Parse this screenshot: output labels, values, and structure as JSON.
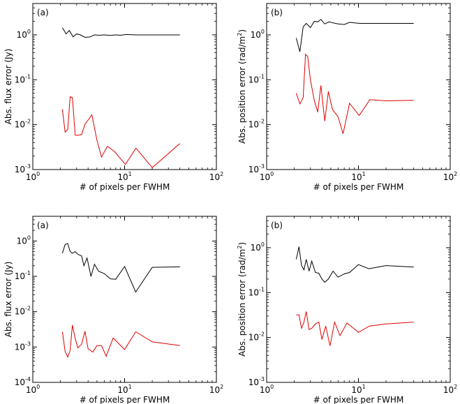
{
  "chart_data": [
    {
      "type": "line",
      "panel_label": "(a)",
      "xlabel": "# of pixels per FWHM",
      "ylabel": "Abs. flux error (Jy)",
      "xscale": "log",
      "yscale": "log",
      "xlim": [
        1,
        100
      ],
      "ylim": [
        0.001,
        5
      ],
      "x_ticks": [
        {
          "v": 1,
          "b": "10",
          "e": "0"
        },
        {
          "v": 10,
          "b": "10",
          "e": "1"
        },
        {
          "v": 100,
          "b": "10",
          "e": "2"
        }
      ],
      "y_ticks": [
        {
          "v": 0.001,
          "b": "10",
          "e": "-3"
        },
        {
          "v": 0.01,
          "b": "10",
          "e": "-2"
        },
        {
          "v": 0.1,
          "b": "10",
          "e": "-1"
        },
        {
          "v": 1,
          "b": "10",
          "e": "0"
        }
      ],
      "series": [
        {
          "color": "#000000",
          "x": [
            2.1,
            2.3,
            2.5,
            2.75,
            3.0,
            3.3,
            3.7,
            4.2,
            4.7,
            5.3,
            6.0,
            7.0,
            8.0,
            9.0,
            10.5,
            13,
            20,
            40
          ],
          "y": [
            1.45,
            1.05,
            1.25,
            0.9,
            1.05,
            1.0,
            0.88,
            0.9,
            1.0,
            0.98,
            1.0,
            0.97,
            1.0,
            0.98,
            1.02,
            1.0,
            1.0,
            1.0
          ]
        },
        {
          "color": "#e00000",
          "x": [
            2.1,
            2.25,
            2.4,
            2.55,
            2.7,
            2.9,
            3.1,
            3.4,
            3.7,
            4.4,
            5.0,
            5.6,
            6.5,
            7.8,
            10.2,
            13.3,
            20,
            40
          ],
          "y": [
            0.022,
            0.0068,
            0.0078,
            0.042,
            0.04,
            0.0058,
            0.0058,
            0.006,
            0.0102,
            0.0165,
            0.0045,
            0.0019,
            0.0033,
            0.0025,
            0.0013,
            0.003,
            0.0011,
            0.0038
          ]
        }
      ]
    },
    {
      "type": "line",
      "panel_label": "(b)",
      "xlabel": "# of pixels per FWHM",
      "ylabel": "Abs. position error (rad/m",
      "ylabel_sup": "2",
      "ylabel_tail": ")",
      "xscale": "log",
      "yscale": "log",
      "xlim": [
        1,
        100
      ],
      "ylim": [
        0.001,
        5
      ],
      "x_ticks": [
        {
          "v": 1,
          "b": "10",
          "e": "0"
        },
        {
          "v": 10,
          "b": "10",
          "e": "1"
        },
        {
          "v": 100,
          "b": "10",
          "e": "2"
        }
      ],
      "y_ticks": [
        {
          "v": 0.001,
          "b": "10",
          "e": "-3"
        },
        {
          "v": 0.01,
          "b": "10",
          "e": "-2"
        },
        {
          "v": 0.1,
          "b": "10",
          "e": "-1"
        },
        {
          "v": 1,
          "b": "10",
          "e": "0"
        }
      ],
      "series": [
        {
          "color": "#000000",
          "x": [
            2.1,
            2.3,
            2.5,
            2.7,
            3.0,
            3.3,
            3.6,
            3.9,
            4.3,
            4.8,
            5.3,
            6.0,
            7.0,
            8.0,
            9.0,
            10.5,
            13,
            20,
            40
          ],
          "y": [
            0.85,
            0.42,
            1.5,
            1.8,
            1.45,
            2.0,
            1.95,
            2.2,
            1.75,
            1.95,
            1.85,
            1.75,
            1.7,
            1.9,
            1.85,
            1.8,
            1.8,
            1.8,
            1.8
          ]
        },
        {
          "color": "#e00000",
          "x": [
            2.1,
            2.3,
            2.5,
            2.65,
            2.8,
            3.0,
            3.3,
            3.6,
            3.9,
            4.3,
            4.7,
            5.2,
            6.0,
            6.8,
            8.0,
            10.2,
            13.3,
            20,
            40
          ],
          "y": [
            0.05,
            0.029,
            0.04,
            0.37,
            0.33,
            0.1,
            0.035,
            0.019,
            0.075,
            0.012,
            0.055,
            0.022,
            0.015,
            0.0063,
            0.03,
            0.016,
            0.036,
            0.034,
            0.035
          ]
        }
      ]
    },
    {
      "type": "line",
      "panel_label": "(a)",
      "xlabel": "# of pixels per FWHM",
      "ylabel": "Abs. flux error (Jy)",
      "xscale": "log",
      "yscale": "log",
      "xlim": [
        1,
        100
      ],
      "ylim": [
        0.0001,
        5
      ],
      "x_ticks": [
        {
          "v": 1,
          "b": "10",
          "e": "0"
        },
        {
          "v": 10,
          "b": "10",
          "e": "1"
        },
        {
          "v": 100,
          "b": "10",
          "e": "2"
        }
      ],
      "y_ticks": [
        {
          "v": 0.0001,
          "b": "10",
          "e": "-4"
        },
        {
          "v": 0.001,
          "b": "10",
          "e": "-3"
        },
        {
          "v": 0.01,
          "b": "10",
          "e": "-2"
        },
        {
          "v": 0.1,
          "b": "10",
          "e": "-1"
        },
        {
          "v": 1,
          "b": "10",
          "e": "0"
        }
      ],
      "series": [
        {
          "color": "#000000",
          "x": [
            2.1,
            2.25,
            2.4,
            2.55,
            2.7,
            2.9,
            3.1,
            3.4,
            3.6,
            3.9,
            4.3,
            4.7,
            5.2,
            6.0,
            7.0,
            8.0,
            10.0,
            13.2,
            20,
            40
          ],
          "y": [
            0.45,
            0.8,
            0.85,
            0.5,
            0.45,
            0.5,
            0.42,
            0.38,
            0.2,
            0.33,
            0.1,
            0.22,
            0.14,
            0.12,
            0.085,
            0.083,
            0.19,
            0.036,
            0.18,
            0.185
          ]
        },
        {
          "color": "#e00000",
          "x": [
            2.1,
            2.25,
            2.4,
            2.55,
            2.7,
            2.9,
            3.1,
            3.4,
            3.7,
            4.0,
            4.5,
            5.0,
            5.6,
            6.3,
            7.5,
            10.0,
            13.2,
            20,
            40
          ],
          "y": [
            0.0027,
            0.00075,
            0.00052,
            0.0008,
            0.0042,
            0.0017,
            0.00095,
            0.0012,
            0.0028,
            0.0009,
            0.00072,
            0.0011,
            0.0011,
            0.00055,
            0.0018,
            0.00085,
            0.0027,
            0.0014,
            0.0011
          ]
        }
      ]
    },
    {
      "type": "line",
      "panel_label": "(b)",
      "xlabel": "# of pixels per FWHM",
      "ylabel": "Abs. position error (rad/m",
      "ylabel_sup": "2",
      "ylabel_tail": ")",
      "xscale": "log",
      "yscale": "log",
      "xlim": [
        1,
        100
      ],
      "ylim": [
        0.001,
        5
      ],
      "x_ticks": [
        {
          "v": 1,
          "b": "10",
          "e": "0"
        },
        {
          "v": 10,
          "b": "10",
          "e": "1"
        },
        {
          "v": 100,
          "b": "10",
          "e": "2"
        }
      ],
      "y_ticks": [
        {
          "v": 0.001,
          "b": "10",
          "e": "-3"
        },
        {
          "v": 0.01,
          "b": "10",
          "e": "-2"
        },
        {
          "v": 0.1,
          "b": "10",
          "e": "-1"
        },
        {
          "v": 1,
          "b": "10",
          "e": "0"
        }
      ],
      "series": [
        {
          "color": "#000000",
          "x": [
            2.1,
            2.25,
            2.4,
            2.55,
            2.7,
            2.9,
            3.1,
            3.4,
            3.7,
            4.0,
            4.3,
            4.7,
            5.3,
            6.0,
            7.0,
            8.0,
            10.0,
            13.0,
            20,
            40
          ],
          "y": [
            0.55,
            1.05,
            0.4,
            0.32,
            0.55,
            0.3,
            0.5,
            0.28,
            0.27,
            0.2,
            0.17,
            0.2,
            0.3,
            0.22,
            0.26,
            0.28,
            0.42,
            0.34,
            0.4,
            0.37
          ]
        },
        {
          "color": "#e00000",
          "x": [
            2.1,
            2.25,
            2.4,
            2.55,
            2.7,
            2.9,
            3.1,
            3.4,
            3.7,
            4.0,
            4.4,
            4.9,
            5.5,
            6.3,
            7.5,
            10.0,
            13.2,
            20,
            40
          ],
          "y": [
            0.032,
            0.032,
            0.016,
            0.022,
            0.038,
            0.015,
            0.016,
            0.02,
            0.022,
            0.009,
            0.018,
            0.0065,
            0.022,
            0.011,
            0.021,
            0.013,
            0.018,
            0.02,
            0.022
          ]
        }
      ]
    }
  ]
}
